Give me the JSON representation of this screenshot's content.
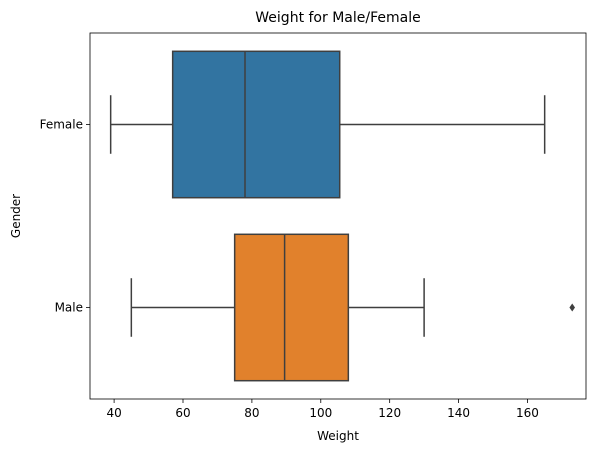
{
  "chart_data": {
    "type": "box",
    "orientation": "horizontal",
    "title": "Weight for Male/Female",
    "xlabel": "Weight",
    "ylabel": "Gender",
    "xlim": [
      33,
      177
    ],
    "xticks": [
      40,
      60,
      80,
      100,
      120,
      140,
      160
    ],
    "grid": false,
    "categories": [
      "Female",
      "Male"
    ],
    "series": [
      {
        "category": "Female",
        "color": "#3274a1",
        "whisker_low": 39,
        "q1": 57,
        "median": 78,
        "q3": 105.5,
        "whisker_high": 165,
        "outliers": []
      },
      {
        "category": "Male",
        "color": "#e1812c",
        "whisker_low": 45,
        "q1": 75,
        "median": 89.5,
        "q3": 108,
        "whisker_high": 130,
        "outliers": [
          173
        ]
      }
    ]
  }
}
